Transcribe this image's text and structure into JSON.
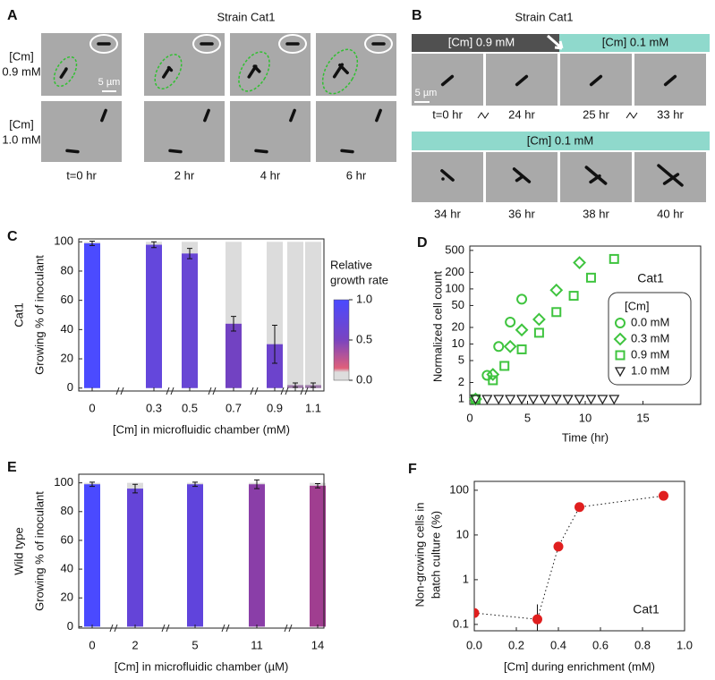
{
  "panel_labels": [
    "A",
    "B",
    "C",
    "D",
    "E",
    "F"
  ],
  "panel_a": {
    "title": "Strain Cat1",
    "rows": [
      [
        "[Cm]",
        "0.9 mM"
      ],
      [
        "[Cm]",
        "1.0 mM"
      ]
    ],
    "times": [
      "t=0 hr",
      "2 hr",
      "4 hr",
      "6 hr"
    ],
    "scale_bar": "5 µm"
  },
  "panel_b": {
    "title": "Strain Cat1",
    "top_conditions": [
      "[Cm] 0.9 mM",
      "[Cm] 0.1 mM"
    ],
    "times_top": [
      "t=0 hr",
      "24 hr",
      "25 hr",
      "33 hr"
    ],
    "bottom_condition": "[Cm] 0.1 mM",
    "times_bottom": [
      "34 hr",
      "36 hr",
      "38 hr",
      "40 hr"
    ],
    "scale_bar": "5 µm"
  },
  "chart_data": [
    {
      "type": "bar",
      "ylabel": [
        "Cat1",
        "Growing % of inoculant"
      ],
      "xlabel": "[Cm] in microfluidic chamber  (mM)",
      "categories": [
        "0",
        "0.3",
        "0.5",
        "0.7",
        "0.9",
        null,
        "1.1"
      ],
      "values": [
        99,
        98,
        92,
        44,
        30,
        2,
        2
      ],
      "errors": [
        1.5,
        2,
        3.5,
        5,
        13,
        1.5,
        1.5
      ],
      "totals": [
        100,
        100,
        100,
        100,
        100,
        100,
        100
      ],
      "total_color": "#dcdcdc",
      "colors": [
        "#4b4bff",
        "#6447dc",
        "#6846d4",
        "#7242c2",
        "#6c43cc",
        "#9c7aa8",
        "#9c7aa8"
      ],
      "ylim": [
        -2,
        102
      ],
      "yticks": [
        0,
        20,
        40,
        60,
        80,
        100
      ],
      "colorbar": {
        "label": [
          "Relative",
          "growth rate"
        ],
        "lim": [
          0,
          1
        ],
        "ticks": [
          {
            "value": 1,
            "label": "1.0"
          },
          0.5,
          {
            "value": 0,
            "label": "0.0"
          }
        ]
      }
    },
    {
      "type": "scatter",
      "yscale": "log",
      "xlabel": "Time (hr)",
      "ylabel": "Normalized cell count",
      "annotation": "Cat1",
      "legend_title": "[Cm]",
      "legend": "right",
      "xlim": [
        0,
        20
      ],
      "xticks": [
        0,
        5,
        10,
        15
      ],
      "ylim": [
        0.8,
        600
      ],
      "yticks": [
        1,
        2,
        5,
        10,
        20,
        50,
        100,
        200,
        500
      ],
      "series": [
        {
          "name": "0.0 mM",
          "color": "#3fc43f",
          "marker": "circle",
          "x": [
            0.5,
            1.5,
            2.5,
            3.5,
            4.5
          ],
          "values": [
            1,
            2.7,
            9,
            25,
            65
          ]
        },
        {
          "name": "0.3 mM",
          "color": "#3fc43f",
          "marker": "diamond",
          "x": [
            0.5,
            2,
            3.5,
            4.5,
            6,
            7.5,
            9.5
          ],
          "values": [
            1,
            2.8,
            9,
            18,
            28,
            95,
            300
          ]
        },
        {
          "name": "0.9 mM",
          "color": "#3fc43f",
          "marker": "square",
          "x": [
            0.5,
            2,
            3,
            4.5,
            6,
            7.5,
            9,
            10.5,
            12.5
          ],
          "values": [
            1,
            2.2,
            4,
            8,
            16,
            38,
            75,
            160,
            350
          ]
        },
        {
          "name": "1.0 mM",
          "color": "#222222",
          "marker": "triangle",
          "x": [
            0.5,
            1.5,
            2.5,
            3.5,
            4.5,
            5.5,
            6.5,
            7.5,
            8.5,
            9.5,
            10.5,
            11.5,
            12.5
          ],
          "values": [
            1,
            1,
            1,
            1,
            1,
            1,
            1,
            1,
            1,
            1,
            1,
            1,
            1
          ]
        }
      ]
    },
    {
      "type": "bar",
      "ylabel": [
        "Wild type",
        "Growing % of inoculant"
      ],
      "xlabel": "[Cm] in microfluidic chamber (µM)",
      "categories": [
        "0",
        "2",
        "5",
        "11",
        "14"
      ],
      "values": [
        99,
        96,
        99,
        99,
        98
      ],
      "errors": [
        1.5,
        3,
        1.5,
        3,
        1.5
      ],
      "totals": [
        100,
        100,
        100,
        100,
        100
      ],
      "total_color": "#dcdcdc",
      "colors": [
        "#4a4aff",
        "#6444d8",
        "#6044dc",
        "#8a3ea8",
        "#a03e90"
      ],
      "ylim": [
        -1,
        106
      ],
      "yticks": [
        0,
        20,
        40,
        60,
        80,
        100
      ]
    },
    {
      "type": "scatter_line",
      "yscale": "log",
      "xlabel": "[Cm] during enrichment (mM)",
      "ylabel": [
        "Non-growing cells in",
        "batch culture (%)"
      ],
      "annotation": "Cat1",
      "x": [
        0,
        0.3,
        0.4,
        0.5,
        0.9
      ],
      "values": [
        0.18,
        0.13,
        5.5,
        42,
        75
      ],
      "errors": [
        0.17,
        0.15,
        1.2,
        6,
        10
      ],
      "color": "#e01f1f",
      "xlim": [
        0,
        1
      ],
      "xticks": [
        {
          "value": 0,
          "label": "0.0"
        },
        0.2,
        0.4,
        0.6,
        0.8,
        {
          "value": 1,
          "label": "1.0"
        }
      ],
      "ylim": [
        0.072,
        158
      ],
      "yticks": [
        0.1,
        1,
        10,
        100
      ]
    }
  ]
}
